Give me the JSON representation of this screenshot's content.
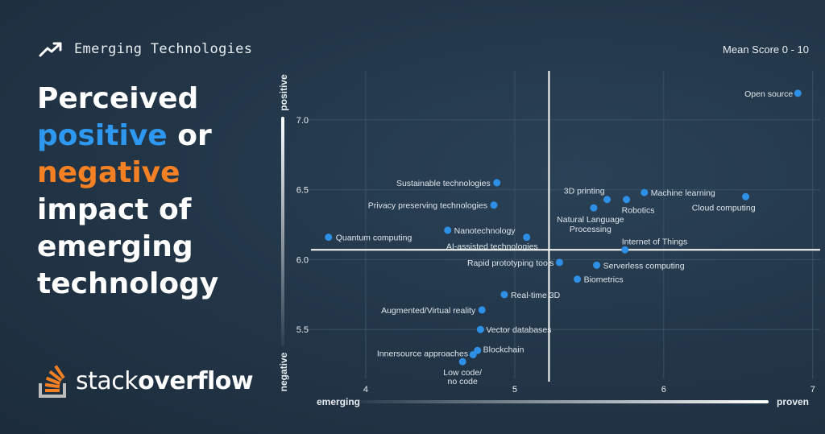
{
  "header": {
    "eyebrow": "Emerging Technologies",
    "icon": "trending-up-icon"
  },
  "headline": {
    "line1": "Perceived",
    "positive_word": "positive",
    "or_word": " or",
    "negative_word": "negative",
    "line4": "impact of",
    "line5": "emerging",
    "line6": "technology"
  },
  "logo": {
    "stack": "stack",
    "overflow": "overflow"
  },
  "colors": {
    "background": "#223547",
    "positive": "#2e98f0",
    "negative": "#f48024",
    "point": "#2e8fe6"
  },
  "chart_data": {
    "type": "scatter",
    "title": "Mean Score 0 - 10",
    "xlabel_low": "emerging",
    "xlabel_high": "proven",
    "ylabel_high": "positive",
    "ylabel_low": "negative",
    "xlim": [
      3.6,
      7.05
    ],
    "ylim": [
      5.15,
      7.35
    ],
    "xticks": [
      4,
      5,
      6,
      7
    ],
    "yticks": [
      5.5,
      6.0,
      6.5,
      7.0
    ],
    "reference_lines": {
      "x": 5.23,
      "y": 6.07
    },
    "points": [
      {
        "label": "Open source",
        "x": 6.9,
        "y": 7.19
      },
      {
        "label": "Sustainable technologies",
        "x": 4.88,
        "y": 6.55
      },
      {
        "label": "Privacy preserving technologies",
        "x": 4.86,
        "y": 6.39
      },
      {
        "label": "3D printing",
        "x": 5.62,
        "y": 6.43
      },
      {
        "label": "Machine learning",
        "x": 5.87,
        "y": 6.48
      },
      {
        "label": "Robotics",
        "x": 5.75,
        "y": 6.43
      },
      {
        "label": "Cloud computing",
        "x": 6.55,
        "y": 6.45
      },
      {
        "label": "Natural Language\nProcessing",
        "x": 5.53,
        "y": 6.37
      },
      {
        "label": "Nanotechnology",
        "x": 4.55,
        "y": 6.21
      },
      {
        "label": "Quantum computing",
        "x": 3.75,
        "y": 6.16
      },
      {
        "label": "AI-assisted technologies",
        "x": 5.08,
        "y": 6.16
      },
      {
        "label": "Internet of Things",
        "x": 5.74,
        "y": 6.07
      },
      {
        "label": "Rapid prototyping tools",
        "x": 5.3,
        "y": 5.98
      },
      {
        "label": "Serverless computing",
        "x": 5.55,
        "y": 5.96
      },
      {
        "label": "Biometrics",
        "x": 5.42,
        "y": 5.86
      },
      {
        "label": "Real-time 3D",
        "x": 4.93,
        "y": 5.75
      },
      {
        "label": "Augmented/Virtual reality",
        "x": 4.78,
        "y": 5.64
      },
      {
        "label": "Vector databases",
        "x": 4.77,
        "y": 5.5
      },
      {
        "label": "Blockchain",
        "x": 4.75,
        "y": 5.35
      },
      {
        "label": "Innersource approaches",
        "x": 4.72,
        "y": 5.32
      },
      {
        "label": "Low code/\nno code",
        "x": 4.65,
        "y": 5.27
      }
    ]
  }
}
